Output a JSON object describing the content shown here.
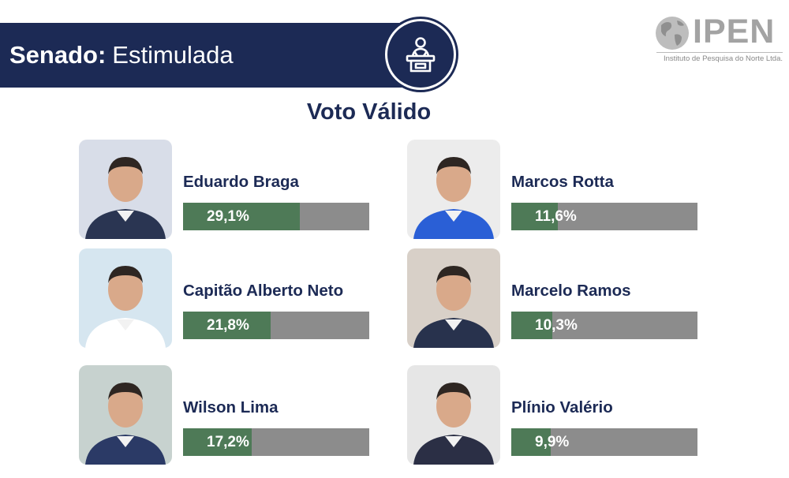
{
  "header": {
    "title_bold": "Senado:",
    "title_rest": "Estimulada",
    "icon": "podium-speaker-icon"
  },
  "logo": {
    "name": "IPEN",
    "tagline": "Instituto de Pesquisa do Norte Ltda."
  },
  "chart_data": {
    "type": "bar",
    "title": "Voto Válido",
    "unit": "%",
    "colors": {
      "fill": "#4e7a57",
      "track": "#8c8c8c",
      "text": "#1c2a55",
      "header": "#1c2a55"
    },
    "candidates": [
      {
        "name": "Eduardo Braga",
        "value": 29.1,
        "label": "29,1%",
        "column": 0,
        "row": 0
      },
      {
        "name": "Capitão Alberto Neto",
        "value": 21.8,
        "label": "21,8%",
        "column": 0,
        "row": 1
      },
      {
        "name": "Wilson Lima",
        "value": 17.2,
        "label": "17,2%",
        "column": 0,
        "row": 2
      },
      {
        "name": "Marcos Rotta",
        "value": 11.6,
        "label": "11,6%",
        "column": 1,
        "row": 0
      },
      {
        "name": "Marcelo Ramos",
        "value": 10.3,
        "label": "10,3%",
        "column": 1,
        "row": 1
      },
      {
        "name": "Plínio Valério",
        "value": 9.9,
        "label": "9,9%",
        "column": 1,
        "row": 2
      }
    ]
  }
}
